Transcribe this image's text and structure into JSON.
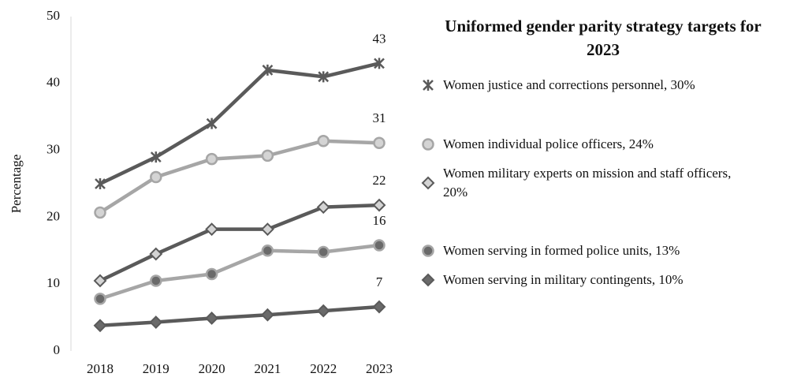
{
  "chart_data": {
    "type": "line",
    "legend_title": "Uniformed gender parity strategy targets for 2023",
    "y_label": "Percentage",
    "categories": [
      "2018",
      "2019",
      "2020",
      "2021",
      "2022",
      "2023"
    ],
    "ylim": [
      0,
      50
    ],
    "yticks": [
      0,
      10,
      20,
      30,
      40,
      50
    ],
    "grid": false,
    "legend": "right",
    "series": [
      {
        "name": "Women justice and corrections personnel, 30%",
        "color": "#5a5a5a",
        "marker": "x",
        "marker_color": "#5a5a5a",
        "values": [
          25,
          29,
          34,
          42,
          41,
          43
        ],
        "value_labels": [
          null,
          null,
          null,
          null,
          null,
          "43"
        ]
      },
      {
        "name": "Women individual police officers, 24%",
        "color": "#a6a6a6",
        "marker": "circle",
        "marker_color": "#d4d4d4",
        "values": [
          20.7,
          26,
          28.7,
          29.2,
          31.4,
          31.1
        ],
        "value_labels": [
          null,
          null,
          null,
          null,
          null,
          "31"
        ]
      },
      {
        "name": "Women military experts on mission and staff officers, 20%",
        "color": "#5a5a5a",
        "marker": "diamond",
        "marker_color": "#d4d4d4",
        "values": [
          10.5,
          14.5,
          18.2,
          18.2,
          21.5,
          21.8
        ],
        "value_labels": [
          null,
          null,
          null,
          null,
          null,
          "22"
        ]
      },
      {
        "name": "Women serving in formed police units, 13%",
        "color": "#a6a6a6",
        "marker": "circle",
        "marker_color": "#6a6a6a",
        "values": [
          7.8,
          10.5,
          11.5,
          15,
          14.8,
          15.8
        ],
        "value_labels": [
          null,
          null,
          null,
          null,
          null,
          "16"
        ]
      },
      {
        "name": "Women serving in military contingents, 10%",
        "color": "#5a5a5a",
        "marker": "diamond",
        "marker_color": "#6a6a6a",
        "values": [
          3.8,
          4.3,
          4.9,
          5.4,
          6.0,
          6.6
        ],
        "value_labels": [
          null,
          null,
          null,
          null,
          null,
          "7"
        ]
      }
    ]
  }
}
